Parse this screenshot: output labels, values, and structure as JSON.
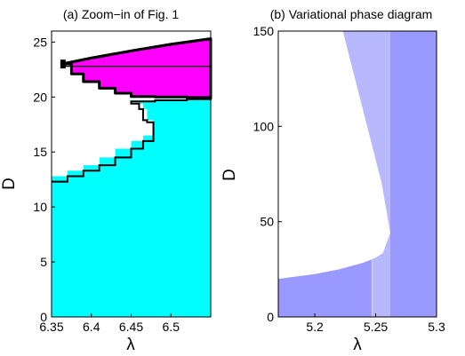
{
  "chart_data": [
    {
      "type": "area",
      "title": "(a) Zoom−in of Fig. 1",
      "xlabel": "λ",
      "ylabel": "D",
      "xlim": [
        6.35,
        6.55
      ],
      "ylim": [
        0,
        26
      ],
      "xticks": [
        6.35,
        6.4,
        6.45,
        6.5
      ],
      "yticks": [
        0,
        5,
        10,
        15,
        20,
        25
      ],
      "xtick_labels": [
        "6.35",
        "6.4",
        "6.45",
        "6.5"
      ],
      "ytick_labels": [
        "0",
        "5",
        "10",
        "15",
        "20",
        "25"
      ],
      "colors": {
        "cyan": "#00ffff",
        "magenta": "#ff00ff",
        "boundary": "#000000"
      },
      "regions": [
        {
          "color": "cyan",
          "lower": [
            [
              6.35,
              0
            ],
            [
              6.55,
              0
            ]
          ],
          "upper": [
            [
              6.35,
              12.3
            ],
            [
              6.37,
              12.8
            ],
            [
              6.39,
              13.3
            ],
            [
              6.41,
              13.8
            ],
            [
              6.43,
              14.5
            ],
            [
              6.45,
              15.3
            ],
            [
              6.465,
              16.0
            ],
            [
              6.478,
              16.5
            ],
            [
              6.478,
              17.7
            ],
            [
              6.47,
              17.9
            ],
            [
              6.465,
              18.9
            ],
            [
              6.46,
              19.4
            ],
            [
              6.45,
              19.6
            ],
            [
              6.48,
              19.7
            ],
            [
              6.52,
              19.8
            ],
            [
              6.55,
              19.9
            ]
          ]
        },
        {
          "color": "magenta",
          "lower": [
            [
              6.363,
              23.0
            ],
            [
              6.375,
              22.1
            ],
            [
              6.39,
              21.4
            ],
            [
              6.41,
              20.8
            ],
            [
              6.43,
              20.35
            ],
            [
              6.45,
              20.05
            ],
            [
              6.48,
              20.0
            ],
            [
              6.52,
              19.95
            ],
            [
              6.55,
              19.9
            ]
          ],
          "upper": [
            [
              6.363,
              23.0
            ],
            [
              6.4,
              23.55
            ],
            [
              6.45,
              24.2
            ],
            [
              6.5,
              24.8
            ],
            [
              6.55,
              25.3
            ]
          ]
        }
      ],
      "inner_line": [
        [
          6.363,
          22.8
        ],
        [
          6.55,
          22.8
        ]
      ]
    },
    {
      "type": "area",
      "title": "(b) Variational phase diagram",
      "xlabel": "λ",
      "ylabel": "D",
      "xlim": [
        5.17,
        5.3
      ],
      "ylim": [
        0,
        150
      ],
      "xticks": [
        5.2,
        5.25,
        5.3
      ],
      "yticks": [
        0,
        50,
        100,
        150
      ],
      "xtick_labels": [
        "5.2",
        "5.25",
        "5.3"
      ],
      "ytick_labels": [
        "0",
        "50",
        "100",
        "150"
      ],
      "colors": {
        "dark": "#9999ff",
        "light": "#b8b8ff",
        "lightest": "#d0d0ff"
      },
      "light_band": {
        "boundary_top": [
          [
            5.223,
            150
          ],
          [
            5.235,
            120
          ],
          [
            5.245,
            95
          ],
          [
            5.255,
            70
          ],
          [
            5.259,
            55
          ],
          [
            5.262,
            44
          ]
        ],
        "boundary_bottom": [
          [
            5.17,
            20
          ],
          [
            5.2,
            22.5
          ],
          [
            5.22,
            25
          ],
          [
            5.24,
            28.5
          ],
          [
            5.25,
            31
          ],
          [
            5.256,
            33.5
          ],
          [
            5.262,
            44
          ]
        ]
      },
      "vertical_line_x": 5.262,
      "faint_line_x": 5.247
    }
  ]
}
